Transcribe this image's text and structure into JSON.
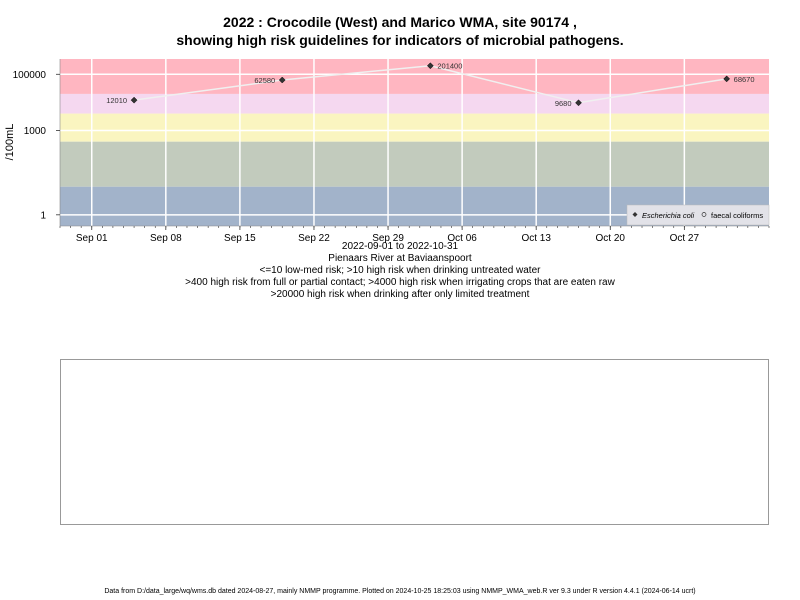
{
  "title_line1": "2022 : Crocodile (West) and Marico WMA, site 90174 ,",
  "title_line2": "showing high risk guidelines for indicators of microbial pathogens.",
  "subtitle": {
    "date_range": "2022-09-01 to 2022-10-31",
    "site_name": "Pienaars River at Baviaanspoort",
    "note1": "<=10 low-med risk; >10 high risk when drinking untreated water",
    "note2": ">400 high risk from full or partial contact; >4000 high risk when irrigating crops that are eaten raw",
    "note3": ">20000 high risk when drinking after only limited treatment"
  },
  "footer": "Data from D:/data_large/wq/wms.db dated 2024-08-27, mainly NMMP programme. Plotted on 2024-10-25 18:25:03 using NMMP_WMA_web.R ver 9.3 under R version 4.4.1 (2024-06-14 ucrt)",
  "colors": {
    "band_red": "#FFB6C1",
    "band_pink": "#F5D8F0",
    "band_cream": "#FAF5C0",
    "band_sage": "#C2CBBD",
    "band_blue": "#A2B3CA",
    "grid": "#FFFFFF",
    "line": "#F0F0F0",
    "marker": "#333333"
  },
  "chart_data": {
    "type": "scatter",
    "title": "2022 : Crocodile (West) and Marico WMA, site 90174 ,",
    "xlabel": "",
    "ylabel": "/100mL",
    "y_scale": "log10",
    "xlim": [
      "2022-08-29",
      "2022-11-04"
    ],
    "ylim": [
      0.4,
      350000
    ],
    "x_ticks": [
      "Sep 01",
      "Sep 08",
      "Sep 15",
      "Sep 22",
      "Sep 29",
      "Oct 06",
      "Oct 13",
      "Oct 20",
      "Oct 27"
    ],
    "x_tick_dates": [
      "2022-09-01",
      "2022-09-08",
      "2022-09-15",
      "2022-09-22",
      "2022-09-29",
      "2022-10-06",
      "2022-10-13",
      "2022-10-20",
      "2022-10-27"
    ],
    "y_ticks": [
      1,
      1000,
      100000
    ],
    "y_tick_labels": [
      "1",
      "1000",
      "100000"
    ],
    "grid": true,
    "legend_position": "bottom-right",
    "guideline_bands": [
      {
        "from": 20000,
        "to": 350000,
        "color": "#FFB6C1"
      },
      {
        "from": 4000,
        "to": 20000,
        "color": "#F5D8F0"
      },
      {
        "from": 400,
        "to": 4000,
        "color": "#FAF5C0"
      },
      {
        "from": 10,
        "to": 400,
        "color": "#C2CBBD"
      },
      {
        "from": 0.4,
        "to": 10,
        "color": "#A2B3CA"
      }
    ],
    "series": [
      {
        "name": "Escherichia coli",
        "marker": "filled-diamond",
        "x": [
          "2022-09-05",
          "2022-09-19",
          "2022-10-03",
          "2022-10-17",
          "2022-10-31"
        ],
        "values": [
          12010,
          62580,
          201400,
          9680,
          68670
        ],
        "labels": [
          "12010",
          "62580",
          "201400",
          "9680",
          "68670"
        ]
      },
      {
        "name": "faecal coliforms",
        "marker": "open-circle",
        "x": [],
        "values": []
      }
    ]
  }
}
